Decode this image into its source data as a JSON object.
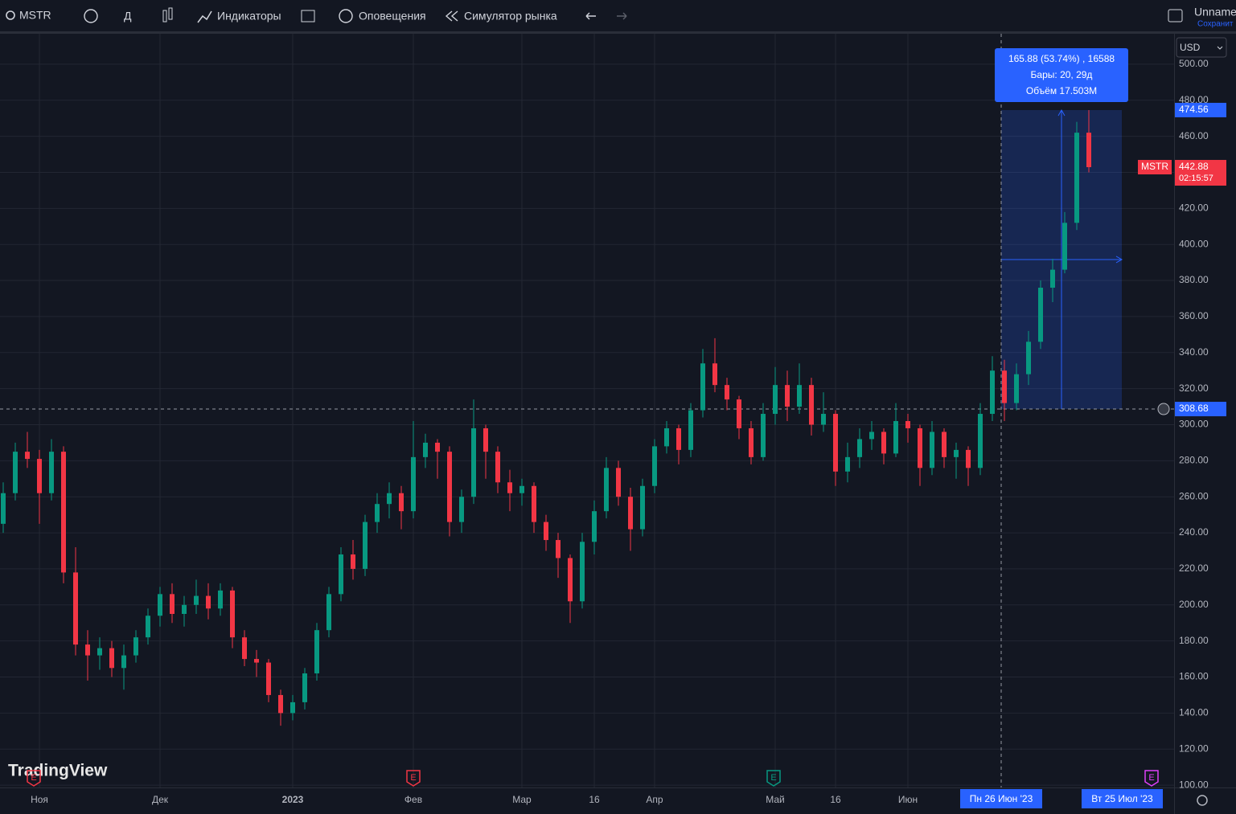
{
  "toolbar": {
    "symbol": "MSTR",
    "interval": "Д",
    "indicators": "Индикаторы",
    "alerts": "Оповещения",
    "replay": "Симулятор рынка",
    "layout_name": "Unname",
    "save": "Сохранит"
  },
  "chart_data": {
    "type": "candlestick",
    "symbol": "MSTR",
    "currency": "USD",
    "watermark": "TradingView",
    "up_color": "#089981",
    "down_color": "#f23645",
    "grid": true,
    "ylim": [
      98.7,
      516.9
    ],
    "yticks": [
      {
        "value": 100,
        "label": "100.00"
      },
      {
        "value": 120,
        "label": "120.00"
      },
      {
        "value": 140,
        "label": "140.00"
      },
      {
        "value": 160,
        "label": "160.00"
      },
      {
        "value": 180,
        "label": "180.00"
      },
      {
        "value": 200,
        "label": "200.00"
      },
      {
        "value": 220,
        "label": "220.00"
      },
      {
        "value": 240,
        "label": "240.00"
      },
      {
        "value": 260,
        "label": "260.00"
      },
      {
        "value": 280,
        "label": "280.00"
      },
      {
        "value": 300,
        "label": "300.00"
      },
      {
        "value": 320,
        "label": "320.00"
      },
      {
        "value": 340,
        "label": "340.00"
      },
      {
        "value": 360,
        "label": "360.00"
      },
      {
        "value": 380,
        "label": "380.00"
      },
      {
        "value": 400,
        "label": "400.00"
      },
      {
        "value": 420,
        "label": "420.00"
      },
      {
        "value": 440,
        "label": "440.00"
      },
      {
        "value": 460,
        "label": "460.00"
      },
      {
        "value": 480,
        "label": "480.00"
      },
      {
        "value": 500,
        "label": "500.00"
      }
    ],
    "xticks": [
      {
        "value": 3,
        "label": "Ноя"
      },
      {
        "value": 13,
        "label": "Дек"
      },
      {
        "value": 24,
        "label": "2023"
      },
      {
        "value": 34,
        "label": "Фев"
      },
      {
        "value": 43,
        "label": "Мар"
      },
      {
        "value": 49,
        "label": "16"
      },
      {
        "value": 54,
        "label": "Апр"
      },
      {
        "value": 64,
        "label": "Май"
      },
      {
        "value": 69,
        "label": "16"
      },
      {
        "value": 75,
        "label": "Июн"
      }
    ],
    "candles": [
      [
        245,
        268,
        240,
        262
      ],
      [
        262,
        290,
        258,
        285
      ],
      [
        285,
        296,
        276,
        281
      ],
      [
        281,
        286,
        245,
        262
      ],
      [
        262,
        292,
        258,
        285
      ],
      [
        285,
        288,
        212,
        218
      ],
      [
        218,
        232,
        172,
        178
      ],
      [
        178,
        186,
        158,
        172
      ],
      [
        172,
        182,
        164,
        176
      ],
      [
        176,
        180,
        160,
        165
      ],
      [
        165,
        178,
        153,
        172
      ],
      [
        172,
        186,
        168,
        182
      ],
      [
        182,
        198,
        178,
        194
      ],
      [
        194,
        210,
        188,
        206
      ],
      [
        206,
        212,
        190,
        195
      ],
      [
        195,
        205,
        188,
        200
      ],
      [
        200,
        214,
        195,
        205
      ],
      [
        205,
        212,
        192,
        198
      ],
      [
        198,
        212,
        194,
        208
      ],
      [
        208,
        210,
        176,
        182
      ],
      [
        182,
        186,
        166,
        170
      ],
      [
        170,
        175,
        160,
        168
      ],
      [
        168,
        170,
        146,
        150
      ],
      [
        150,
        153,
        133,
        140
      ],
      [
        140,
        150,
        136,
        146
      ],
      [
        146,
        165,
        142,
        162
      ],
      [
        162,
        190,
        158,
        186
      ],
      [
        186,
        210,
        182,
        206
      ],
      [
        206,
        232,
        202,
        228
      ],
      [
        228,
        236,
        214,
        220
      ],
      [
        220,
        250,
        216,
        246
      ],
      [
        246,
        262,
        240,
        256
      ],
      [
        256,
        268,
        248,
        262
      ],
      [
        262,
        266,
        242,
        252
      ],
      [
        252,
        302,
        248,
        282
      ],
      [
        282,
        295,
        276,
        290
      ],
      [
        290,
        292,
        270,
        285
      ],
      [
        285,
        288,
        238,
        246
      ],
      [
        246,
        264,
        240,
        260
      ],
      [
        260,
        314,
        256,
        298
      ],
      [
        298,
        300,
        270,
        285
      ],
      [
        285,
        288,
        262,
        268
      ],
      [
        268,
        275,
        252,
        262
      ],
      [
        262,
        270,
        255,
        266
      ],
      [
        266,
        268,
        240,
        246
      ],
      [
        246,
        250,
        230,
        236
      ],
      [
        236,
        240,
        215,
        226
      ],
      [
        226,
        228,
        190,
        202
      ],
      [
        202,
        240,
        198,
        235
      ],
      [
        235,
        258,
        228,
        252
      ],
      [
        252,
        282,
        248,
        276
      ],
      [
        276,
        280,
        255,
        260
      ],
      [
        260,
        265,
        230,
        242
      ],
      [
        242,
        270,
        238,
        266
      ],
      [
        266,
        292,
        262,
        288
      ],
      [
        288,
        302,
        284,
        298
      ],
      [
        298,
        300,
        278,
        286
      ],
      [
        286,
        312,
        282,
        308
      ],
      [
        308,
        342,
        304,
        334
      ],
      [
        334,
        348,
        318,
        322
      ],
      [
        322,
        326,
        308,
        314
      ],
      [
        314,
        316,
        292,
        298
      ],
      [
        298,
        302,
        278,
        282
      ],
      [
        282,
        312,
        280,
        306
      ],
      [
        306,
        332,
        300,
        322
      ],
      [
        322,
        330,
        302,
        310
      ],
      [
        310,
        334,
        306,
        322
      ],
      [
        322,
        326,
        294,
        300
      ],
      [
        300,
        318,
        296,
        306
      ],
      [
        306,
        308,
        266,
        274
      ],
      [
        274,
        290,
        268,
        282
      ],
      [
        282,
        298,
        276,
        292
      ],
      [
        292,
        302,
        286,
        296
      ],
      [
        296,
        298,
        278,
        284
      ],
      [
        284,
        312,
        282,
        302
      ],
      [
        302,
        306,
        290,
        298
      ],
      [
        298,
        300,
        266,
        276
      ],
      [
        276,
        302,
        272,
        296
      ],
      [
        296,
        298,
        276,
        282
      ],
      [
        282,
        290,
        270,
        286
      ],
      [
        286,
        288,
        266,
        276
      ],
      [
        276,
        312,
        272,
        306
      ],
      [
        306,
        338,
        302,
        330
      ],
      [
        330,
        336,
        302,
        312
      ],
      [
        312,
        334,
        308,
        328
      ],
      [
        328,
        352,
        322,
        346
      ],
      [
        346,
        380,
        342,
        376
      ],
      [
        376,
        392,
        368,
        386
      ],
      [
        386,
        418,
        384,
        412
      ],
      [
        412,
        468,
        408,
        462
      ],
      [
        462,
        474.56,
        440,
        442.88
      ]
    ],
    "last_price": 442.88,
    "countdown": "02:15:57",
    "measure": {
      "from": 308.68,
      "to": 474.56,
      "change": "165.88 (53.74%) , 16588",
      "bars": "Бары: 20, 29д",
      "volume": "Объём 17.503M",
      "start_date": "Пн 26 Июн '23",
      "end_date": "Вт 25 Июл '23"
    },
    "events": [
      "E",
      "E",
      "E",
      "E"
    ]
  }
}
